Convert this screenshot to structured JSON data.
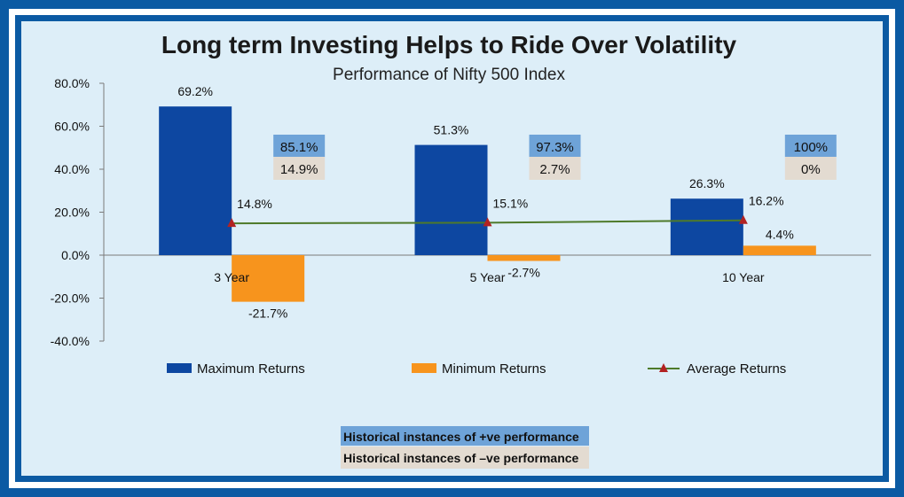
{
  "chart_data": {
    "type": "bar",
    "title": "Long term Investing Helps to Ride Over Volatility",
    "subtitle": "Performance of Nifty 500 Index",
    "categories": [
      "3 Year",
      "5 Year",
      "10 Year"
    ],
    "series": [
      {
        "name": "Maximum Returns",
        "type": "bar",
        "values": [
          69.2,
          51.3,
          26.3
        ],
        "labels": [
          "69.2%",
          "51.3%",
          "26.3%"
        ],
        "color": "#0d47a1"
      },
      {
        "name": "Minimum Returns",
        "type": "bar",
        "values": [
          -21.7,
          -2.7,
          4.4
        ],
        "labels": [
          "-21.7%",
          "-2.7%",
          "4.4%"
        ],
        "color": "#f7941d"
      },
      {
        "name": "Average Returns",
        "type": "line",
        "values": [
          14.8,
          15.1,
          16.2
        ],
        "labels": [
          "14.8%",
          "15.1%",
          "16.2%"
        ],
        "color": "#4e7a2a",
        "marker_color": "#b22222"
      }
    ],
    "ylim": [
      -40,
      80
    ],
    "yticks": [
      80,
      60,
      40,
      20,
      0,
      -20,
      -40
    ],
    "ytick_labels": [
      "80.0%",
      "60.0%",
      "40.0%",
      "20.0%",
      "0.0%",
      "-20.0%",
      "-40.0%"
    ],
    "positive_instances": [
      "85.1%",
      "97.3%",
      "100%"
    ],
    "negative_instances": [
      "14.9%",
      "2.7%",
      "0%"
    ],
    "legend_position": "bottom",
    "grid": false
  },
  "notes": {
    "positive": "Historical instances of +ve performance",
    "negative": "Historical instances of –ve performance"
  },
  "colors": {
    "frame": "#0b5aa3",
    "background": "#ddeef8",
    "positive_box": "#6ea3d8",
    "negative_box": "#e3dbd1"
  }
}
